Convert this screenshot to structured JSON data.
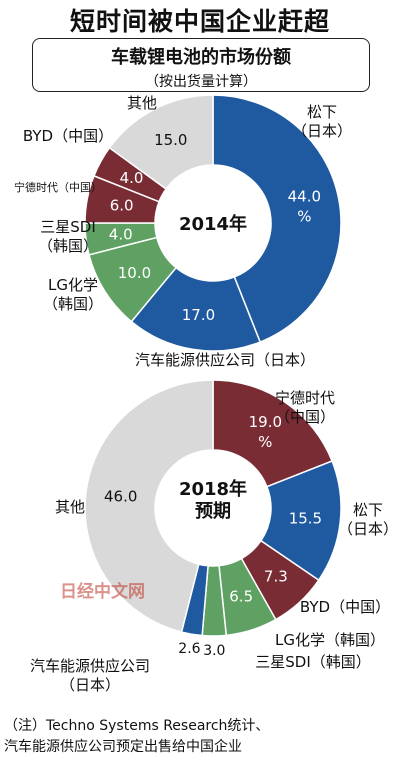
{
  "headline": "短时间被中国企业赶超",
  "subtitle": "车载锂电池的市场份额",
  "subtitle_note": "（按出货量计算）",
  "watermark": "日经中文网",
  "footnote": {
    "line1": "（注）Techno Systems Research统计、",
    "line2": "汽车能源供应公司预定出售给中国企业"
  },
  "colors": {
    "panasonic": "#1f5aa1",
    "catl": "#7a2c35",
    "byd": "#7a2c35",
    "lg": "#5fa162",
    "samsung": "#5fa162",
    "aesc": "#1f5aa1",
    "other": "#d9d9d9",
    "watermark": "#c0392b"
  },
  "chart_data": [
    {
      "type": "pie",
      "style": "donut",
      "center_label": "2014年",
      "unit": "%",
      "slices": [
        {
          "name": "松下（日本）",
          "value": 44.0,
          "value_label": "44.0 %",
          "color": "#1f5aa1"
        },
        {
          "name": "汽车能源供应公司（日本）",
          "value": 17.0,
          "value_label": "17.0",
          "color": "#1f5aa1"
        },
        {
          "name": "LG化学（韩国）",
          "value": 10.0,
          "value_label": "10.0",
          "color": "#5fa162"
        },
        {
          "name": "三星SDI（韩国）",
          "value": 4.0,
          "value_label": "4.0",
          "color": "#5fa162"
        },
        {
          "name": "宁德时代（中国）",
          "value": 6.0,
          "value_label": "6.0",
          "color": "#7a2c35"
        },
        {
          "name": "BYD（中国）",
          "value": 4.0,
          "value_label": "4.0",
          "color": "#7a2c35"
        },
        {
          "name": "其他",
          "value": 15.0,
          "value_label": "15.0",
          "color": "#d9d9d9"
        }
      ]
    },
    {
      "type": "pie",
      "style": "donut",
      "center_label": "2018年预期",
      "unit": "%",
      "slices": [
        {
          "name": "宁德时代（中国）",
          "value": 19.0,
          "value_label": "19.0 %",
          "color": "#7a2c35"
        },
        {
          "name": "松下（日本）",
          "value": 15.5,
          "value_label": "15.5",
          "color": "#1f5aa1"
        },
        {
          "name": "BYD（中国）",
          "value": 7.3,
          "value_label": "7.3",
          "color": "#7a2c35"
        },
        {
          "name": "LG化学（韩国）",
          "value": 6.5,
          "value_label": "6.5",
          "color": "#5fa162"
        },
        {
          "name": "三星SDI（韩国）",
          "value": 3.0,
          "value_label": "3.0",
          "color": "#5fa162"
        },
        {
          "name": "汽车能源供应公司（日本）",
          "value": 2.6,
          "value_label": "2.6",
          "color": "#1f5aa1"
        },
        {
          "name": "其他",
          "value": 46.0,
          "value_label": "46.0",
          "color": "#d9d9d9"
        }
      ]
    }
  ]
}
